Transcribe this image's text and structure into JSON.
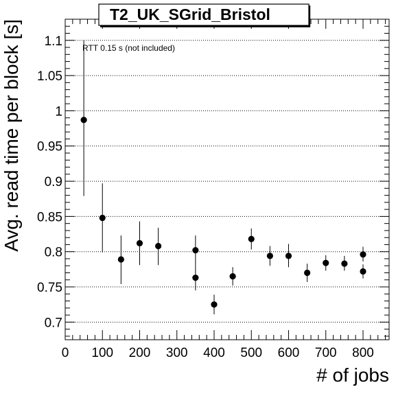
{
  "chart_data": {
    "type": "scatter",
    "title": "T2_UK_SGrid_Bristol",
    "xlabel": "# of jobs",
    "ylabel": "Avg. read time per block [s]",
    "annotation": "RTT 0.15 s (not included)",
    "xlim": [
      0,
      870
    ],
    "ylim": [
      0.675,
      1.13
    ],
    "x_ticks": [
      0,
      100,
      200,
      300,
      400,
      500,
      600,
      700,
      800
    ],
    "x_tick_labels": [
      "0",
      "100",
      "200",
      "300",
      "400",
      "500",
      "600",
      "700",
      "800"
    ],
    "y_ticks": [
      0.7,
      0.75,
      0.8,
      0.85,
      0.9,
      0.95,
      1.0,
      1.05,
      1.1
    ],
    "y_tick_labels": [
      "0.7",
      "0.75",
      "0.8",
      "0.85",
      "0.9",
      "0.95",
      "1",
      "1.05",
      "1.1"
    ],
    "grid": "horizontal dotted",
    "colors": {
      "marker": "#000000",
      "grid": "#000000",
      "frame": "#000000"
    },
    "series": [
      {
        "points": [
          {
            "x": 50,
            "y": 0.987,
            "y_low": 0.879,
            "y_high": 1.1
          },
          {
            "x": 100,
            "y": 0.848,
            "y_low": 0.799,
            "y_high": 0.897
          },
          {
            "x": 150,
            "y": 0.789,
            "y_low": 0.754,
            "y_high": 0.823
          },
          {
            "x": 200,
            "y": 0.812,
            "y_low": 0.781,
            "y_high": 0.843
          },
          {
            "x": 250,
            "y": 0.808,
            "y_low": 0.781,
            "y_high": 0.834
          },
          {
            "x": 350,
            "y": 0.802,
            "y_low": 0.781,
            "y_high": 0.823
          },
          {
            "x": 350,
            "y": 0.763,
            "y_low": 0.745,
            "y_high": 0.781
          },
          {
            "x": 400,
            "y": 0.725,
            "y_low": 0.711,
            "y_high": 0.739
          },
          {
            "x": 450,
            "y": 0.765,
            "y_low": 0.752,
            "y_high": 0.778
          },
          {
            "x": 500,
            "y": 0.818,
            "y_low": 0.803,
            "y_high": 0.833
          },
          {
            "x": 550,
            "y": 0.794,
            "y_low": 0.78,
            "y_high": 0.808
          },
          {
            "x": 600,
            "y": 0.794,
            "y_low": 0.778,
            "y_high": 0.811
          },
          {
            "x": 650,
            "y": 0.77,
            "y_low": 0.757,
            "y_high": 0.783
          },
          {
            "x": 700,
            "y": 0.784,
            "y_low": 0.773,
            "y_high": 0.795
          },
          {
            "x": 750,
            "y": 0.783,
            "y_low": 0.773,
            "y_high": 0.794
          },
          {
            "x": 800,
            "y": 0.796,
            "y_low": 0.786,
            "y_high": 0.807
          },
          {
            "x": 800,
            "y": 0.772,
            "y_low": 0.762,
            "y_high": 0.782
          }
        ]
      }
    ]
  }
}
